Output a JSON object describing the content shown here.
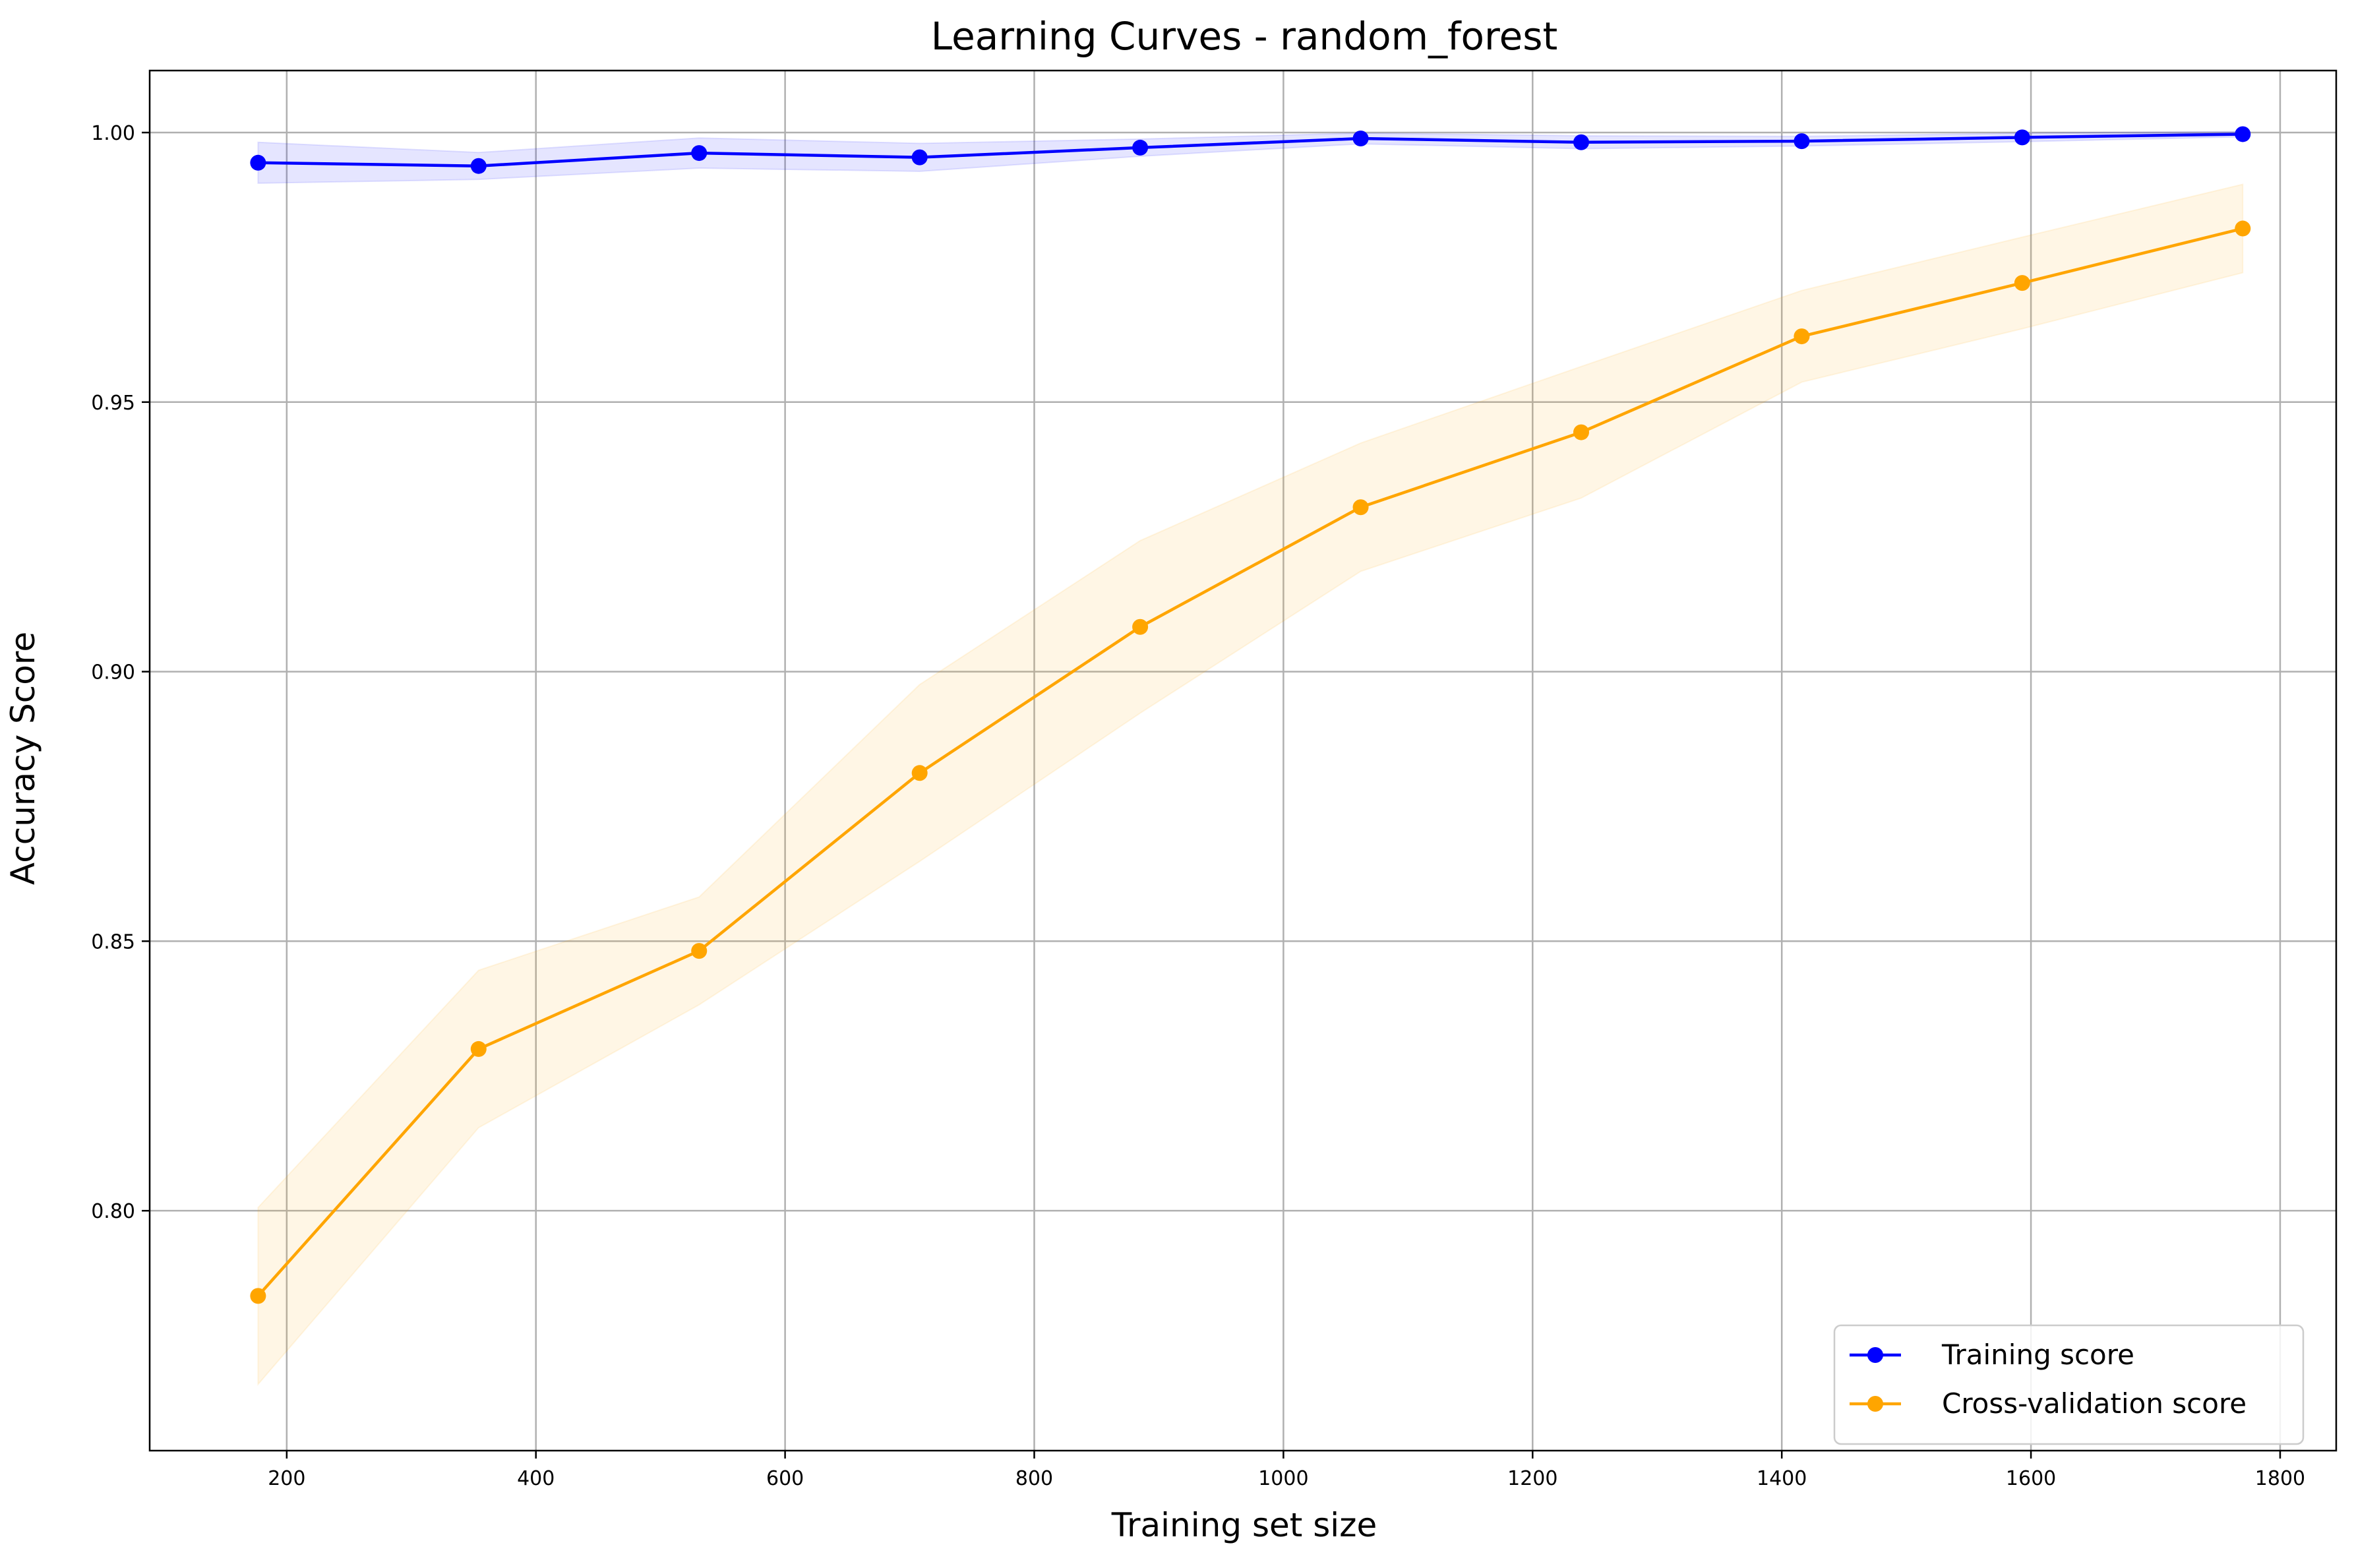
{
  "chart_data": {
    "type": "line",
    "title": "Learning Curves - random_forest",
    "xlabel": "Training set size",
    "ylabel": "Accuracy Score",
    "xlim": [
      90,
      1845
    ],
    "ylim": [
      0.7555,
      1.0115
    ],
    "x_ticks": [
      200,
      400,
      600,
      800,
      1000,
      1200,
      1400,
      1600,
      1800
    ],
    "y_ticks": [
      0.8,
      0.85,
      0.9,
      0.95,
      1.0
    ],
    "x_tick_labels": [
      "200",
      "400",
      "600",
      "800",
      "1000",
      "1200",
      "1400",
      "1600",
      "1800"
    ],
    "y_tick_labels": [
      "0.80",
      "0.85",
      "0.90",
      "0.95",
      "1.00"
    ],
    "grid": true,
    "legend_position": "bottom-right",
    "x": [
      177,
      354,
      531,
      708,
      885,
      1062,
      1239,
      1416,
      1593,
      1770
    ],
    "series": [
      {
        "name": "Training score",
        "color": "#0000ff",
        "band_color": "#0000ff",
        "values": [
          0.9944,
          0.9938,
          0.9962,
          0.9954,
          0.9972,
          0.9989,
          0.9982,
          0.9984,
          0.9991,
          0.9997
        ],
        "band_upper": [
          0.9982,
          0.9963,
          0.999,
          0.998,
          0.9988,
          0.9999,
          0.9994,
          0.9993,
          0.9999,
          1.0002
        ],
        "band_lower": [
          0.9906,
          0.9913,
          0.9934,
          0.9928,
          0.9956,
          0.9979,
          0.997,
          0.9975,
          0.9983,
          0.9992
        ]
      },
      {
        "name": "Cross-validation score",
        "color": "#ffa500",
        "band_color": "#ffa500",
        "values": [
          0.7842,
          0.83,
          0.8482,
          0.8812,
          0.9083,
          0.9305,
          0.9444,
          0.9622,
          0.9721,
          0.9822
        ],
        "band_upper": [
          0.8006,
          0.8446,
          0.8582,
          0.8976,
          0.9243,
          0.9424,
          0.9566,
          0.9707,
          0.9806,
          0.9904
        ],
        "band_lower": [
          0.7678,
          0.8154,
          0.8382,
          0.8648,
          0.8923,
          0.9186,
          0.9322,
          0.9537,
          0.9636,
          0.974
        ]
      }
    ]
  }
}
